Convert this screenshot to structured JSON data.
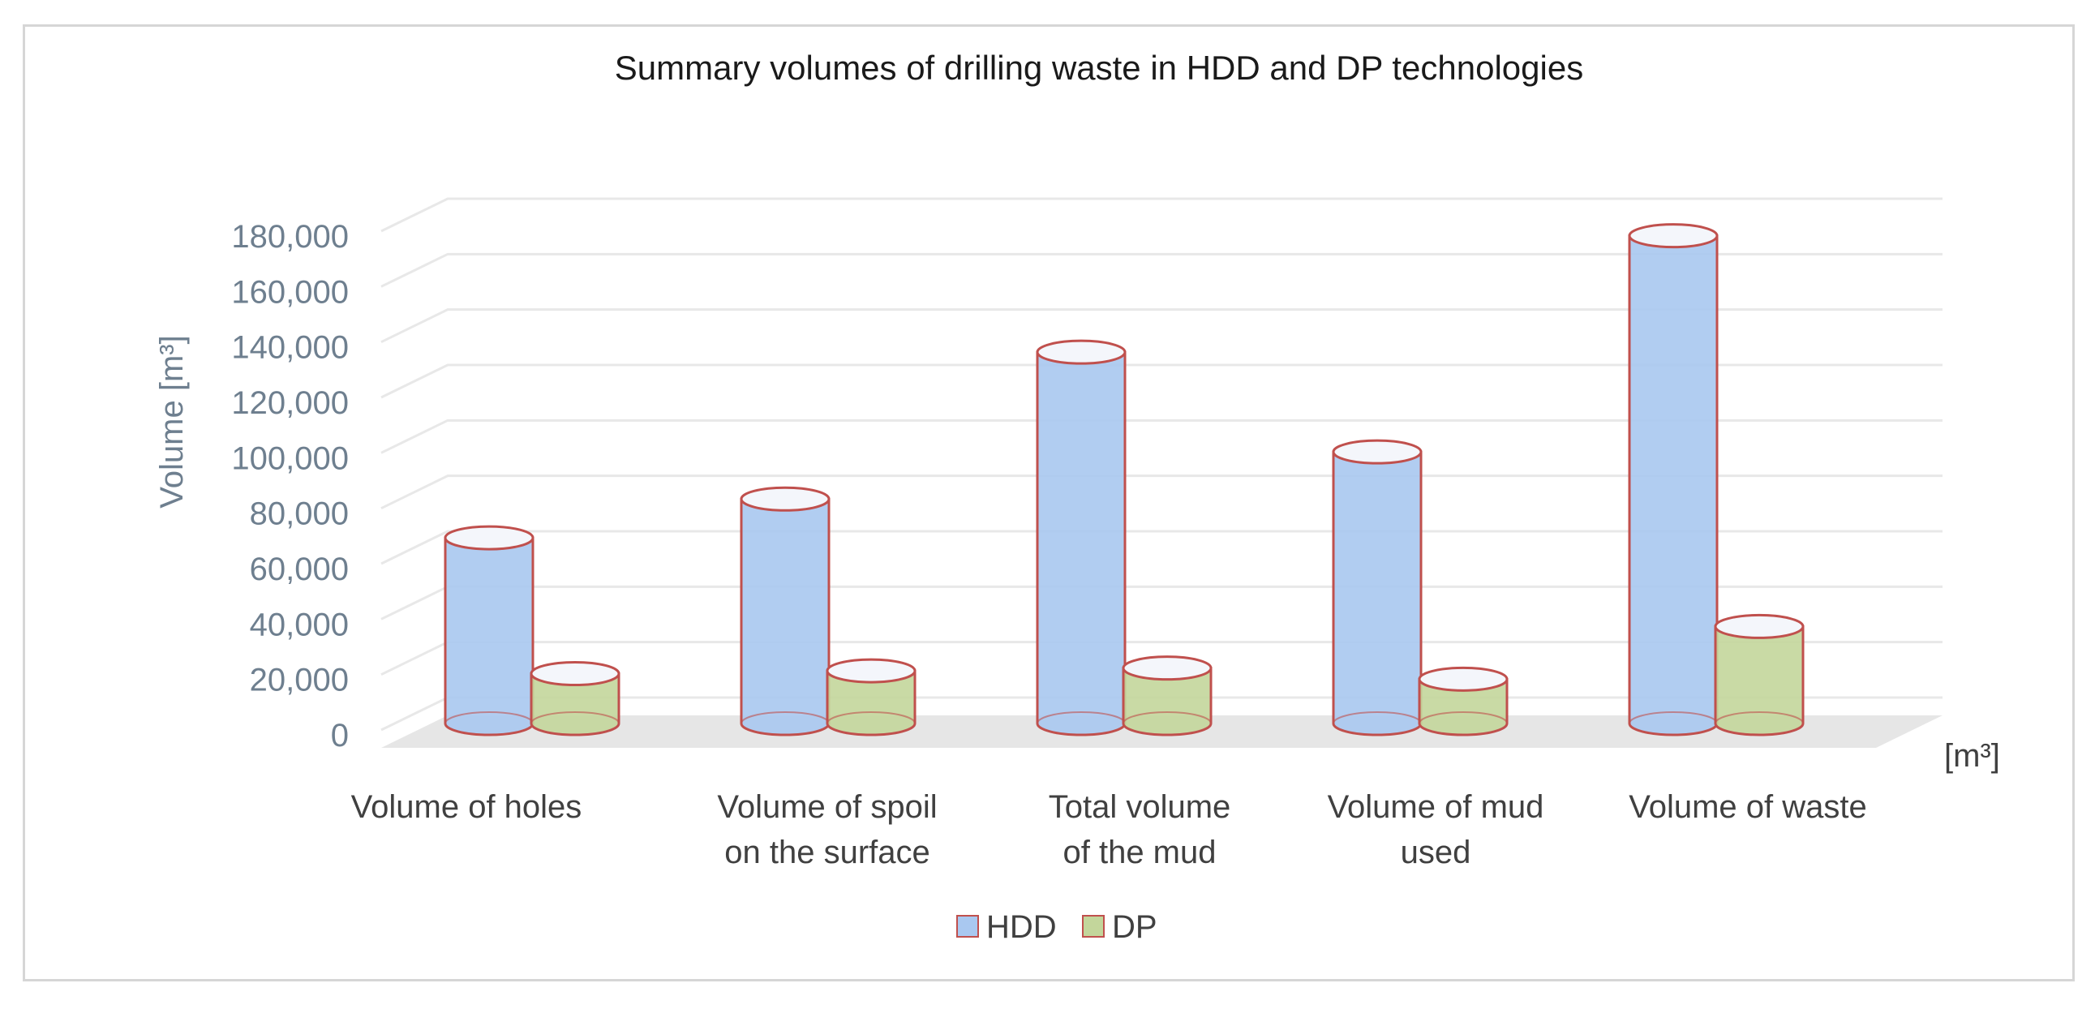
{
  "colors": {
    "hdd_fill": "#a9c8f0",
    "dp_fill": "#c3d69b",
    "outline": "#c0504d",
    "floor": "#e6e6e6",
    "grid": "#e8e8e8"
  },
  "chart_data": {
    "type": "bar",
    "title": "Summary volumes of drilling waste in HDD and DP technologies",
    "ylabel": "Volume [m³]",
    "xunit": "[m³]",
    "ylim": [
      0,
      180000
    ],
    "yticks": [
      "0",
      "20,000",
      "40,000",
      "60,000",
      "80,000",
      "100,000",
      "120,000",
      "140,000",
      "160,000",
      "180,000"
    ],
    "categories": [
      [
        "Volume of holes"
      ],
      [
        "Volume of spoil",
        "on the surface"
      ],
      [
        "Total volume",
        "of the mud"
      ],
      [
        "Volume of mud",
        "used"
      ],
      [
        "Volume of waste"
      ]
    ],
    "series": [
      {
        "name": "HDD",
        "values": [
          67000,
          81000,
          134000,
          98000,
          176000
        ]
      },
      {
        "name": "DP",
        "values": [
          18000,
          19000,
          20000,
          16000,
          35000
        ]
      }
    ],
    "legend_position": "bottom"
  }
}
